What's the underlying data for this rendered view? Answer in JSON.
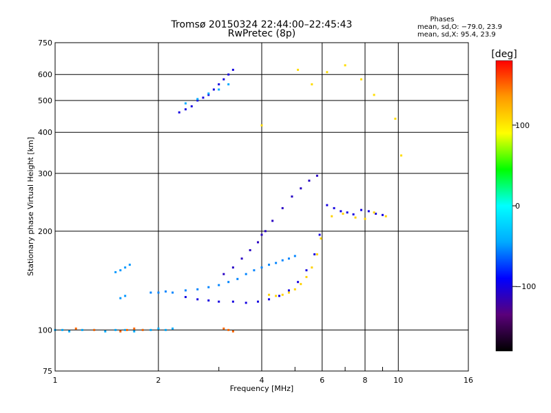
{
  "chart_data": {
    "type": "scatter",
    "title": "Tromsø 20150324 22:44:00–22:45:43",
    "subtitle": "RwPretec (8p)",
    "xlabel": "Frequency [MHz]",
    "ylabel": "Stationary phase Virtual Height [km]",
    "x_scale": "log",
    "y_scale": "log",
    "xlim": [
      1,
      16
    ],
    "ylim": [
      75,
      750
    ],
    "x_ticks": [
      1,
      2,
      4,
      6,
      8,
      10,
      16
    ],
    "x_tick_labels": [
      "1",
      "2",
      "4",
      "6",
      "8",
      "10",
      "16"
    ],
    "y_ticks": [
      75,
      100,
      200,
      300,
      400,
      500,
      600,
      750
    ],
    "y_tick_labels": [
      "75",
      "100",
      "200",
      "300",
      "400",
      "500",
      "600",
      "750"
    ],
    "grid": true,
    "stats": {
      "heading": "Phases",
      "line_o": "mean, sd,O: −79.0, 23.9",
      "line_x": "mean, sd,X:  95.4, 23.9"
    },
    "colorbar": {
      "unit": "[deg]",
      "range": [
        -180,
        180
      ],
      "ticks": [
        100,
        0,
        -100
      ],
      "tick_labels": [
        "100",
        "0",
        "−100"
      ],
      "colors": [
        "#000000",
        "#5a007a",
        "#0000ff",
        "#00aaff",
        "#00ffff",
        "#00ff00",
        "#ffff00",
        "#ff9900",
        "#ff0000"
      ]
    },
    "series": [
      {
        "x": [
          1.0,
          1.05,
          1.1,
          1.2,
          1.3,
          1.4,
          1.5,
          1.6,
          1.7,
          1.8,
          1.9,
          2.0,
          2.1,
          2.2
        ],
        "y": [
          100,
          100,
          99,
          100,
          100,
          99,
          100,
          100,
          99,
          100,
          100,
          101,
          100,
          101
        ],
        "phase": -45
      },
      {
        "x": [
          1.15,
          1.3,
          1.55,
          1.62,
          1.7,
          1.8,
          3.1,
          3.2,
          3.3
        ],
        "y": [
          101,
          100,
          99,
          100,
          101,
          100,
          101,
          100,
          99
        ],
        "phase": 150
      },
      {
        "x": [
          1.9,
          2.0,
          2.1,
          2.2,
          2.4,
          2.6,
          2.8,
          3.0,
          3.2,
          3.4,
          3.6,
          3.8,
          4.0,
          4.2,
          4.4,
          4.6,
          4.8,
          5.0
        ],
        "y": [
          130,
          130,
          131,
          130,
          132,
          133,
          135,
          137,
          140,
          143,
          148,
          152,
          155,
          158,
          160,
          163,
          165,
          168
        ],
        "phase": -55
      },
      {
        "x": [
          2.4,
          2.6,
          2.8,
          3.0,
          3.3,
          3.6,
          3.9,
          4.2,
          4.5,
          4.8,
          5.1,
          5.4,
          5.7,
          5.9
        ],
        "y": [
          126,
          124,
          123,
          122,
          122,
          121,
          122,
          124,
          127,
          132,
          140,
          152,
          170,
          195
        ],
        "phase": -100
      },
      {
        "x": [
          3.1,
          3.3,
          3.5,
          3.7,
          3.9,
          4.0,
          4.1,
          4.3,
          4.6,
          4.9,
          5.2,
          5.5,
          5.8
        ],
        "y": [
          148,
          155,
          165,
          175,
          185,
          195,
          200,
          215,
          235,
          255,
          270,
          285,
          295
        ],
        "phase": -110
      },
      {
        "x": [
          4.2,
          4.4,
          4.6,
          4.8,
          5.0,
          5.2,
          5.4,
          5.6,
          5.8,
          5.95
        ],
        "y": [
          128,
          127,
          128,
          130,
          133,
          138,
          145,
          155,
          170,
          190
        ],
        "phase": 110
      },
      {
        "x": [
          2.3,
          2.4,
          2.5,
          2.6,
          2.7,
          2.8,
          2.9,
          3.0,
          3.1,
          3.2,
          3.3
        ],
        "y": [
          460,
          470,
          480,
          500,
          510,
          520,
          540,
          560,
          580,
          600,
          620
        ],
        "phase": -100
      },
      {
        "x": [
          2.4,
          2.6,
          2.8,
          3.0,
          3.2
        ],
        "y": [
          490,
          505,
          525,
          540,
          560
        ],
        "phase": -45
      },
      {
        "x": [
          6.2,
          6.5,
          6.8,
          7.1,
          7.4,
          7.8,
          8.2,
          8.6,
          9.0
        ],
        "y": [
          240,
          235,
          230,
          228,
          225,
          232,
          230,
          226,
          224
        ],
        "phase": -100
      },
      {
        "x": [
          6.4,
          6.9,
          7.5,
          8.0,
          8.5,
          9.2
        ],
        "y": [
          222,
          226,
          220,
          218,
          228,
          222
        ],
        "phase": 110
      },
      {
        "x": [
          1.5,
          1.55,
          1.6,
          1.65,
          1.55,
          1.6
        ],
        "y": [
          150,
          152,
          155,
          158,
          125,
          127
        ],
        "phase": -50
      },
      {
        "x": [
          4.0,
          5.1,
          5.6,
          6.2,
          7.0,
          7.8,
          8.5,
          9.8,
          10.2
        ],
        "y": [
          420,
          620,
          560,
          610,
          640,
          580,
          520,
          440,
          340
        ],
        "phase": 105
      }
    ]
  }
}
